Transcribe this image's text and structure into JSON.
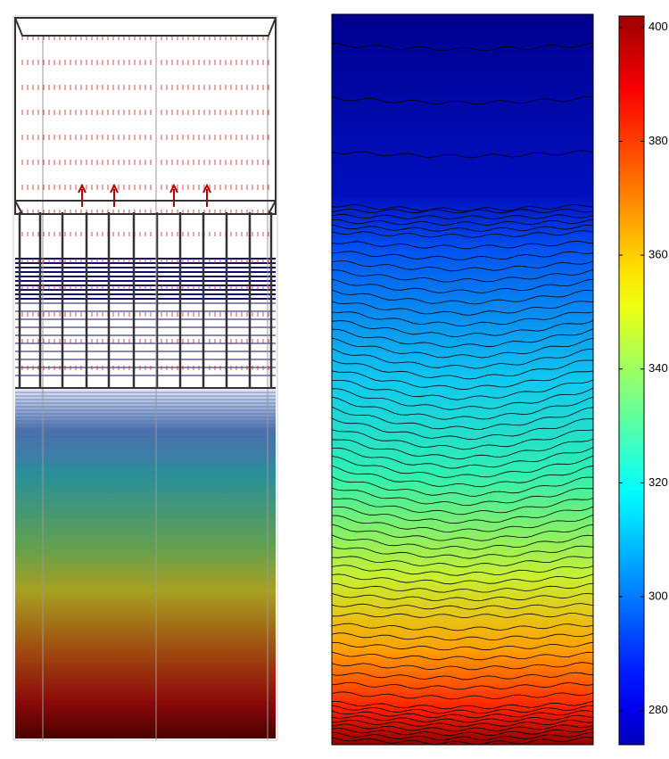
{
  "chart_data": {
    "type": "contour",
    "colormap": "jet",
    "clim": [
      274,
      402
    ],
    "cticks": [
      280,
      300,
      320,
      340,
      360,
      380,
      400
    ]
  }
}
